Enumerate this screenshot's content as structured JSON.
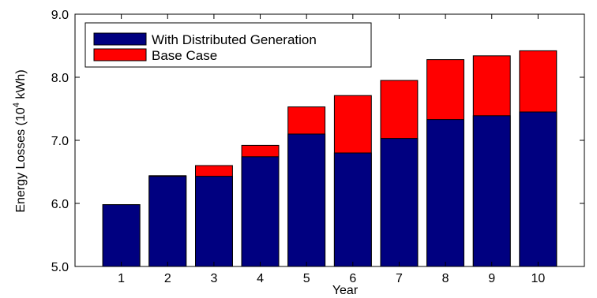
{
  "chart_data": {
    "type": "bar",
    "stacked": "overlay",
    "categories": [
      "1",
      "2",
      "3",
      "4",
      "5",
      "6",
      "7",
      "8",
      "9",
      "10"
    ],
    "series": [
      {
        "name": "Base Case",
        "color": "#ff0000",
        "values": [
          5.98,
          6.44,
          6.6,
          6.92,
          7.53,
          7.71,
          7.95,
          8.28,
          8.34,
          8.42
        ]
      },
      {
        "name": "With Distributed Generation",
        "color": "#000080",
        "values": [
          5.98,
          6.43,
          6.43,
          6.74,
          7.1,
          6.8,
          7.03,
          7.33,
          7.39,
          7.45
        ]
      }
    ],
    "xlabel": "Year",
    "ylabel_main": "Energy Losses (10",
    "ylabel_sup": "4",
    "ylabel_tail": " kWh)",
    "ylim": [
      5.0,
      9.0
    ],
    "yticks": [
      "5.0",
      "6.0",
      "7.0",
      "8.0",
      "9.0"
    ],
    "grid": false,
    "legend_position": "top-left",
    "legend": [
      {
        "label": "With Distributed Generation",
        "color": "#000080"
      },
      {
        "label": "Base Case",
        "color": "#ff0000"
      }
    ]
  }
}
